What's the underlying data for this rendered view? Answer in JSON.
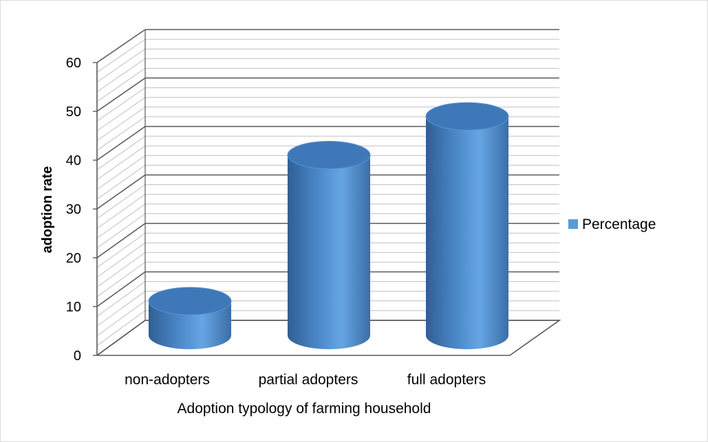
{
  "chart_data": {
    "type": "bar",
    "style": "3d-cylinder",
    "categories": [
      "non-adopters",
      "partial adopters",
      "full adopters"
    ],
    "series": [
      {
        "name": "Percentage",
        "values": [
          8,
          42,
          51
        ],
        "color": "#5b9bd5"
      }
    ],
    "xlabel": "Adoption typology of farming household",
    "ylabel": "adoption rate",
    "ylim": [
      0,
      60
    ],
    "yticks": [
      "0",
      "10",
      "20",
      "30",
      "40",
      "50",
      "60"
    ],
    "grid": true,
    "legend_position": "right",
    "colors": {
      "bar": "#5b9bd5",
      "gridline": "#595959",
      "hatch": "#bfbfbf"
    }
  }
}
